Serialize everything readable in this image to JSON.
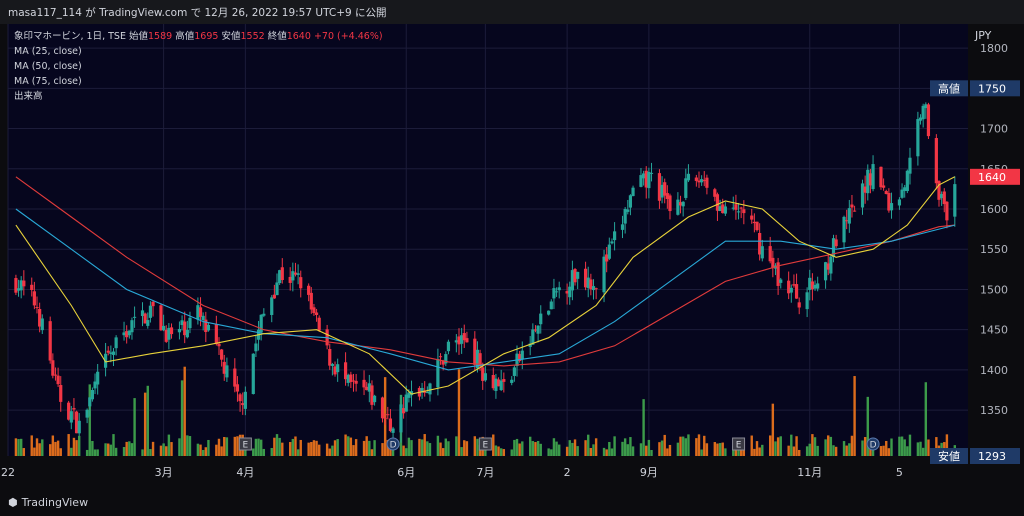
{
  "header": {
    "publisher": "masa117_114 が TradingView.com で 12月 26, 2022 19:57 UTC+9 に公開"
  },
  "footer": {
    "logo_text": "TradingView"
  },
  "legend": {
    "symbol": "象印マホービン, 1日, TSE",
    "open_label": "始値",
    "open": "1589",
    "high_label": "高値",
    "high": "1695",
    "low_label": "安値",
    "low": "1552",
    "close_label": "終値",
    "close": "1640",
    "change": "+70 (+4.46%)",
    "ma25": "MA (25, close)",
    "ma50": "MA (50, close)",
    "ma75": "MA (75, close)",
    "volume": "出来高"
  },
  "colors": {
    "up": "#26a69a",
    "down": "#f23645",
    "ma25": "#e8d23a",
    "ma50": "#29a8d6",
    "ma75": "#e03b3b",
    "vol_up": "#3fa34d",
    "vol_down": "#e8721c",
    "background": "#06061e",
    "marker_bg": "#1f3a67"
  },
  "chart_data": {
    "type": "candlestick",
    "currency": "JPY",
    "y_ticks": [
      "1350",
      "1400",
      "1450",
      "1500",
      "1550",
      "1600",
      "1650",
      "1700",
      "1750",
      "1800"
    ],
    "ylim": [
      1293,
      1820
    ],
    "x_tick_labels": [
      {
        "label": "22",
        "date": "2022-01-01"
      },
      {
        "label": "3月",
        "date": "2022-03-01"
      },
      {
        "label": "4月",
        "date": "2022-04-01"
      },
      {
        "label": "6月",
        "date": "2022-06-01"
      },
      {
        "label": "7月",
        "date": "2022-07-01"
      },
      {
        "label": "2",
        "date": "2022-08-01"
      },
      {
        "label": "9月",
        "date": "2022-09-01"
      },
      {
        "label": "11月",
        "date": "2022-11-01"
      },
      {
        "label": "5",
        "date": "2022-12-05"
      }
    ],
    "price_markers": [
      {
        "label": "高値",
        "value": "1750"
      },
      {
        "label": "",
        "value": "1640"
      },
      {
        "label": "安値",
        "value": "1293"
      }
    ],
    "event_markers": [
      {
        "label": "E",
        "date": "2022-04-01"
      },
      {
        "label": "D",
        "date": "2022-05-27"
      },
      {
        "label": "E",
        "date": "2022-07-01"
      },
      {
        "label": "E",
        "date": "2022-10-05"
      },
      {
        "label": "D",
        "date": "2022-11-25"
      }
    ],
    "price_path": [
      [
        "2022-01-04",
        1510
      ],
      [
        "2022-01-12",
        1480
      ],
      [
        "2022-01-20",
        1370
      ],
      [
        "2022-01-28",
        1330
      ],
      [
        "2022-02-07",
        1410
      ],
      [
        "2022-02-15",
        1450
      ],
      [
        "2022-02-24",
        1475
      ],
      [
        "2022-03-04",
        1440
      ],
      [
        "2022-03-14",
        1470
      ],
      [
        "2022-03-23",
        1410
      ],
      [
        "2022-03-30",
        1355
      ],
      [
        "2022-04-07",
        1460
      ],
      [
        "2022-04-14",
        1520
      ],
      [
        "2022-04-22",
        1510
      ],
      [
        "2022-05-02",
        1420
      ],
      [
        "2022-05-10",
        1380
      ],
      [
        "2022-05-18",
        1370
      ],
      [
        "2022-05-26",
        1330
      ],
      [
        "2022-06-03",
        1370
      ],
      [
        "2022-06-10",
        1385
      ],
      [
        "2022-06-17",
        1430
      ],
      [
        "2022-06-24",
        1440
      ],
      [
        "2022-06-30",
        1400
      ],
      [
        "2022-07-08",
        1380
      ],
      [
        "2022-07-15",
        1420
      ],
      [
        "2022-07-22",
        1460
      ],
      [
        "2022-07-29",
        1500
      ],
      [
        "2022-08-05",
        1520
      ],
      [
        "2022-08-12",
        1510
      ],
      [
        "2022-08-19",
        1560
      ],
      [
        "2022-08-26",
        1620
      ],
      [
        "2022-09-02",
        1640
      ],
      [
        "2022-09-09",
        1600
      ],
      [
        "2022-09-16",
        1630
      ],
      [
        "2022-09-22",
        1640
      ],
      [
        "2022-09-30",
        1590
      ],
      [
        "2022-10-07",
        1600
      ],
      [
        "2022-10-14",
        1550
      ],
      [
        "2022-10-21",
        1510
      ],
      [
        "2022-10-28",
        1490
      ],
      [
        "2022-11-04",
        1510
      ],
      [
        "2022-11-11",
        1560
      ],
      [
        "2022-11-18",
        1600
      ],
      [
        "2022-11-25",
        1650
      ],
      [
        "2022-12-02",
        1600
      ],
      [
        "2022-12-08",
        1640
      ],
      [
        "2022-12-14",
        1740
      ],
      [
        "2022-12-19",
        1640
      ],
      [
        "2022-12-23",
        1580
      ],
      [
        "2022-12-26",
        1640
      ]
    ],
    "ma25_path": [
      [
        "2022-01-04",
        1580
      ],
      [
        "2022-01-25",
        1480
      ],
      [
        "2022-02-07",
        1410
      ],
      [
        "2022-02-24",
        1420
      ],
      [
        "2022-03-16",
        1430
      ],
      [
        "2022-04-08",
        1445
      ],
      [
        "2022-04-28",
        1450
      ],
      [
        "2022-05-18",
        1420
      ],
      [
        "2022-06-03",
        1370
      ],
      [
        "2022-06-17",
        1380
      ],
      [
        "2022-07-08",
        1420
      ],
      [
        "2022-07-25",
        1440
      ],
      [
        "2022-08-12",
        1480
      ],
      [
        "2022-08-26",
        1540
      ],
      [
        "2022-09-16",
        1590
      ],
      [
        "2022-09-30",
        1610
      ],
      [
        "2022-10-14",
        1600
      ],
      [
        "2022-10-28",
        1560
      ],
      [
        "2022-11-11",
        1540
      ],
      [
        "2022-11-25",
        1550
      ],
      [
        "2022-12-08",
        1580
      ],
      [
        "2022-12-20",
        1630
      ],
      [
        "2022-12-26",
        1640
      ]
    ],
    "ma50_path": [
      [
        "2022-01-04",
        1600
      ],
      [
        "2022-01-25",
        1550
      ],
      [
        "2022-02-15",
        1500
      ],
      [
        "2022-03-16",
        1460
      ],
      [
        "2022-04-08",
        1445
      ],
      [
        "2022-05-02",
        1440
      ],
      [
        "2022-05-26",
        1420
      ],
      [
        "2022-06-17",
        1400
      ],
      [
        "2022-07-08",
        1410
      ],
      [
        "2022-07-29",
        1420
      ],
      [
        "2022-08-19",
        1460
      ],
      [
        "2022-09-09",
        1510
      ],
      [
        "2022-09-30",
        1560
      ],
      [
        "2022-10-21",
        1560
      ],
      [
        "2022-11-11",
        1550
      ],
      [
        "2022-12-02",
        1560
      ],
      [
        "2022-12-20",
        1575
      ],
      [
        "2022-12-26",
        1580
      ]
    ],
    "ma75_path": [
      [
        "2022-01-04",
        1640
      ],
      [
        "2022-01-25",
        1590
      ],
      [
        "2022-02-15",
        1540
      ],
      [
        "2022-03-16",
        1480
      ],
      [
        "2022-04-08",
        1450
      ],
      [
        "2022-05-02",
        1435
      ],
      [
        "2022-05-26",
        1425
      ],
      [
        "2022-06-17",
        1410
      ],
      [
        "2022-07-08",
        1405
      ],
      [
        "2022-07-29",
        1410
      ],
      [
        "2022-08-19",
        1430
      ],
      [
        "2022-09-09",
        1470
      ],
      [
        "2022-09-30",
        1510
      ],
      [
        "2022-10-21",
        1530
      ],
      [
        "2022-11-11",
        1545
      ],
      [
        "2022-12-02",
        1560
      ],
      [
        "2022-12-20",
        1578
      ],
      [
        "2022-12-26",
        1580
      ]
    ]
  }
}
